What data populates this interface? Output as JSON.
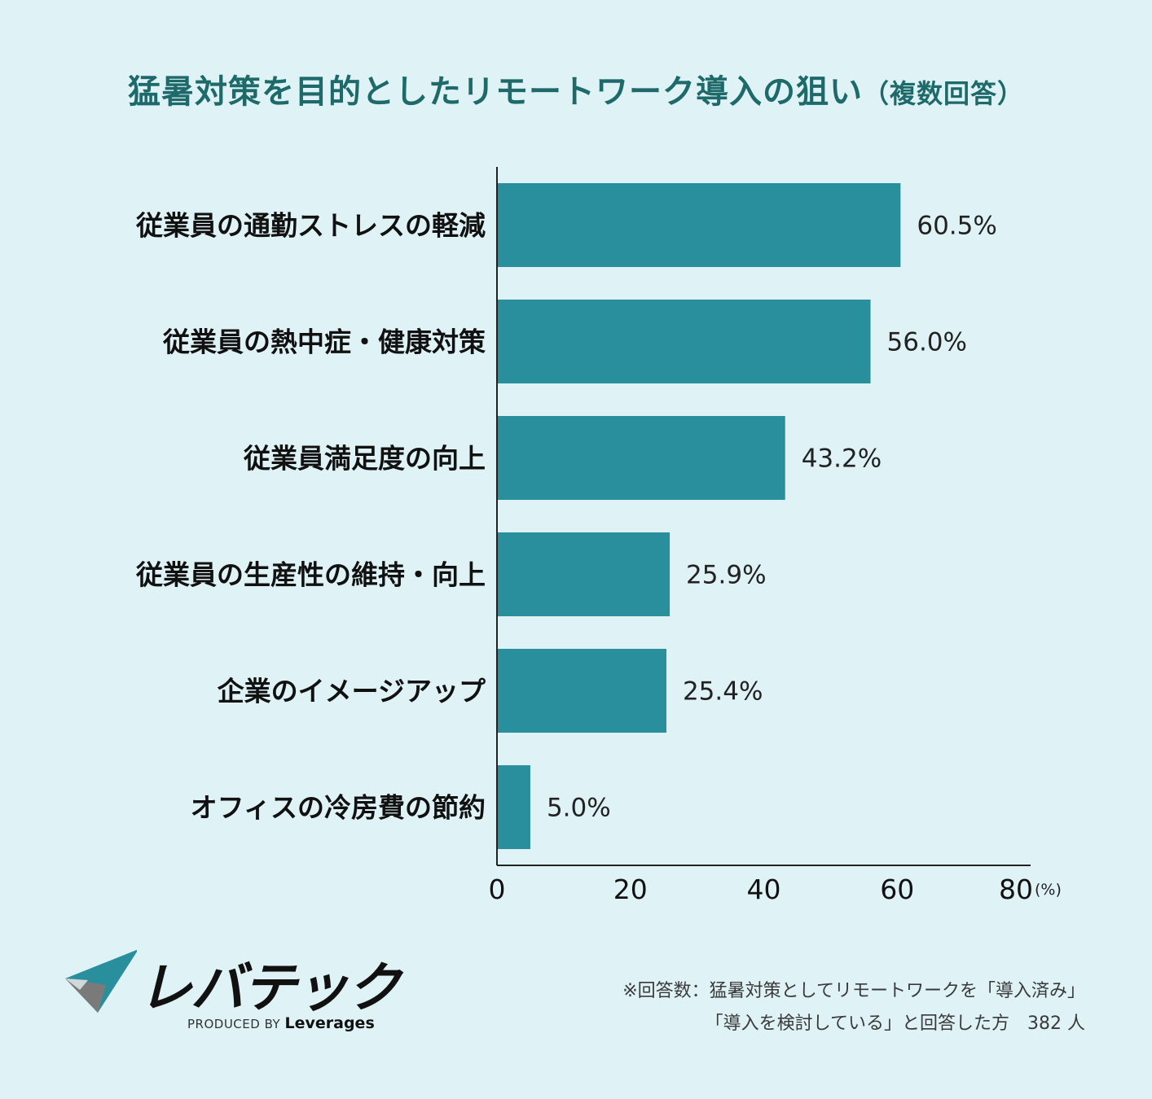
{
  "title": "猛暑対策を目的としたリモートワーク導入の狙い",
  "subtitle": "（複数回答）",
  "chart_data": {
    "type": "bar",
    "orientation": "horizontal",
    "categories": [
      "従業員の通勤ストレスの軽減",
      "従業員の熱中症・健康対策",
      "従業員満足度の向上",
      "従業員の生産性の維持・向上",
      "企業のイメージアップ",
      "オフィスの冷房費の節約"
    ],
    "values": [
      60.5,
      56.0,
      43.2,
      25.9,
      25.4,
      5.0
    ],
    "value_labels": [
      "60.5%",
      "56.0%",
      "43.2%",
      "25.9%",
      "25.4%",
      "5.0%"
    ],
    "x_ticks": [
      "0",
      "20",
      "40",
      "60",
      "80"
    ],
    "x_unit": "(%)",
    "xlim": [
      0,
      80
    ],
    "bar_color": "#2a8f9c",
    "grid": false
  },
  "logo": {
    "name": "レバテック",
    "produced_prefix": "PRODUCED BY",
    "produced_brand": "Leverages"
  },
  "note": {
    "line1": "※回答数：猛暑対策としてリモートワークを「導入済み」",
    "line2": "「導入を検討している」と回答した方　382 人"
  }
}
